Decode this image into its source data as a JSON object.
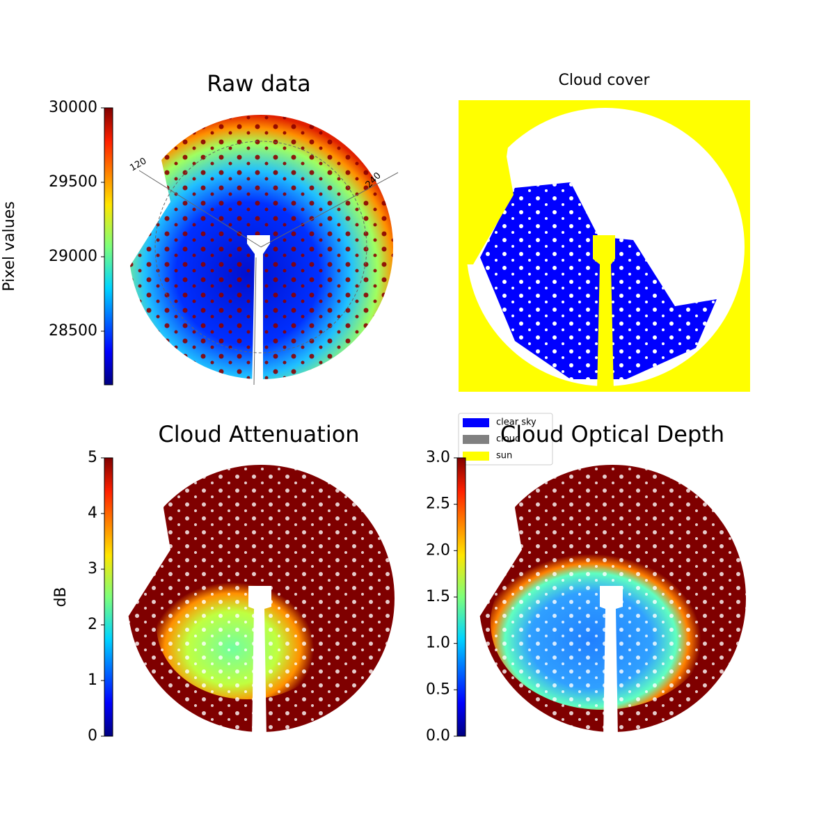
{
  "chart_data": [
    {
      "type": "image",
      "title": "Raw data",
      "colorbar_label": "Pixel values",
      "colormap": "jet",
      "clim": [
        28140,
        30000
      ],
      "colorbar_ticks": [
        28500,
        29000,
        29500,
        30000
      ],
      "annotations": [
        "120",
        "240"
      ]
    },
    {
      "type": "image",
      "title": "Cloud cover",
      "legend": [
        {
          "name": "clear sky",
          "color": "#0000ff"
        },
        {
          "name": "cloud",
          "color": "#808080"
        },
        {
          "name": "sun",
          "color": "#ffff00"
        }
      ]
    },
    {
      "type": "image",
      "title": "Cloud Attenuation",
      "colorbar_label": "dB",
      "colormap": "jet",
      "clim": [
        0,
        5
      ],
      "colorbar_ticks": [
        0,
        1,
        2,
        3,
        4,
        5
      ]
    },
    {
      "type": "image",
      "title": "Cloud Optical Depth",
      "colormap": "jet",
      "clim": [
        0,
        3
      ],
      "colorbar_ticks": [
        {
          "value": 0,
          "label": "0.0"
        },
        {
          "value": 0.5,
          "label": "0.5"
        },
        {
          "value": 1,
          "label": "1.0"
        },
        {
          "value": 1.5,
          "label": "1.5"
        },
        {
          "value": 2,
          "label": "2.0"
        },
        {
          "value": 2.5,
          "label": "2.5"
        },
        {
          "value": 3,
          "label": "3.0"
        }
      ]
    }
  ]
}
